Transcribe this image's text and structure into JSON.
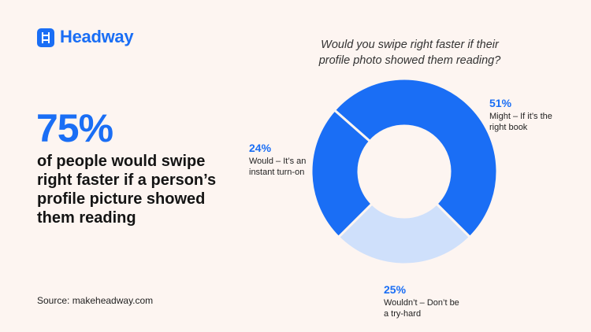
{
  "brand": "Headway",
  "headline": {
    "figure": "75%",
    "text": "of people would swipe right faster if a person’s profile picture showed them reading"
  },
  "source": "Source: makeheadway.com",
  "chart_data": {
    "type": "donut",
    "title": "Would you swipe right faster if their profile photo showed them reading?",
    "categories": [
      "Might – If it’s the right book",
      "Wouldn’t – Don’t be a try-hard",
      "Would – It’s an instant turn-on"
    ],
    "values": [
      51,
      25,
      24
    ],
    "value_labels": [
      "51%",
      "25%",
      "24%"
    ],
    "colors": [
      "#1a6ef5",
      "#cfe0fb",
      "#1a6ef5"
    ]
  }
}
